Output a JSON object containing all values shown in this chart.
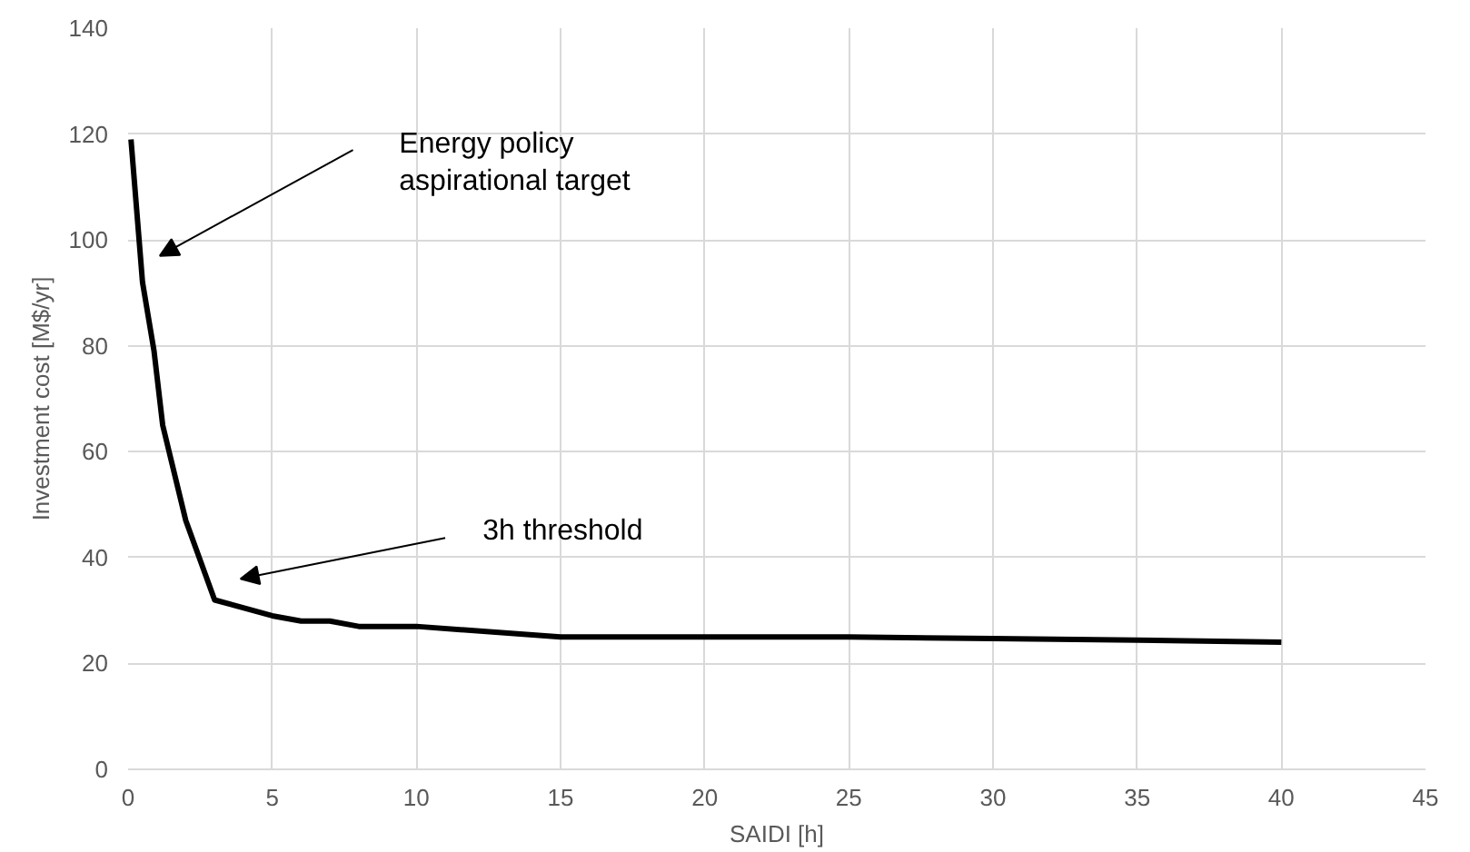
{
  "chart_data": {
    "type": "line",
    "xlabel": "SAIDI [h]",
    "ylabel": "Investment cost [M$/yr]",
    "x": [
      0.1,
      0.5,
      0.9,
      1.2,
      2,
      3,
      5,
      6,
      7,
      8,
      10,
      15,
      20,
      25,
      30,
      35,
      40
    ],
    "series": [
      {
        "color": "#000000",
        "values": [
          119,
          92,
          79,
          65,
          47,
          32,
          29,
          28,
          28,
          27,
          27,
          25,
          25,
          25,
          24.7,
          24.4,
          24
        ]
      }
    ],
    "xlim": [
      0,
      45
    ],
    "xticks": [
      0,
      5,
      10,
      15,
      20,
      25,
      30,
      35,
      40,
      45
    ],
    "ylim": [
      0,
      140
    ],
    "yticks": [
      0,
      20,
      40,
      60,
      80,
      100,
      120,
      140
    ],
    "grid": true,
    "marker": "none",
    "line_style": "solid",
    "annotations": [
      "Energy policy\naspirational target",
      "3h threshold"
    ]
  }
}
